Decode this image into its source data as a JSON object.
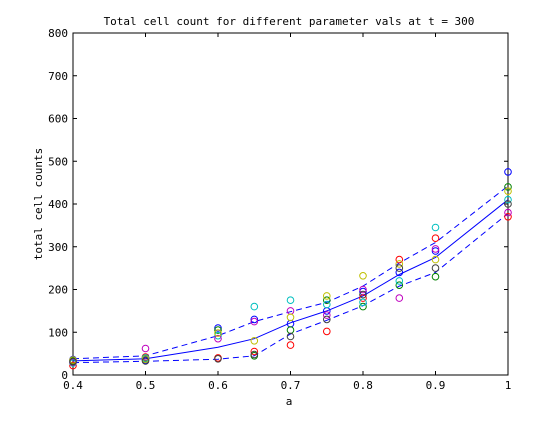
{
  "chart_data": {
    "type": "scatter",
    "title": "Total cell count for different parameter vals at t = 300",
    "xlabel": "a",
    "ylabel": "total cell counts",
    "xlim": [
      0.4,
      1.0
    ],
    "ylim": [
      0,
      800
    ],
    "xticks": [
      "0.4",
      "0.5",
      "0.6",
      "0.7",
      "0.8",
      "0.9",
      "1"
    ],
    "yticks": [
      "0",
      "100",
      "200",
      "300",
      "400",
      "500",
      "600",
      "700",
      "800"
    ],
    "grid": false,
    "colors": [
      "#0000ff",
      "#008000",
      "#ff0000",
      "#00bfbf",
      "#bf00bf",
      "#bfbf00",
      "#404040"
    ],
    "mean_line": {
      "x": [
        0.4,
        0.5,
        0.6,
        0.65,
        0.7,
        0.75,
        0.8,
        0.85,
        0.9,
        1.0
      ],
      "y": [
        33,
        38,
        65,
        85,
        122,
        150,
        185,
        235,
        275,
        410
      ],
      "color": "#0000ff",
      "style": "solid"
    },
    "upper_line": {
      "x": [
        0.4,
        0.5,
        0.6,
        0.65,
        0.7,
        0.75,
        0.8,
        0.85,
        0.9,
        1.0
      ],
      "y": [
        38,
        45,
        92,
        125,
        148,
        170,
        208,
        262,
        310,
        442
      ],
      "color": "#0000ff",
      "style": "dashed"
    },
    "lower_line": {
      "x": [
        0.4,
        0.5,
        0.6,
        0.65,
        0.7,
        0.75,
        0.8,
        0.85,
        0.9,
        1.0
      ],
      "y": [
        29,
        32,
        37,
        45,
        96,
        128,
        162,
        208,
        240,
        378
      ],
      "color": "#0000ff",
      "style": "dashed"
    },
    "points": [
      {
        "x": 0.4,
        "values": [
          36,
          33,
          22,
          28,
          30,
          35,
          31
        ]
      },
      {
        "x": 0.5,
        "values": [
          35,
          38,
          42,
          40,
          62,
          37,
          33
        ]
      },
      {
        "x": 0.6,
        "values": [
          110,
          105,
          40,
          92,
          85,
          98,
          38
        ]
      },
      {
        "x": 0.65,
        "values": [
          130,
          45,
          55,
          160,
          125,
          80,
          48
        ]
      },
      {
        "x": 0.7,
        "values": [
          120,
          105,
          70,
          175,
          150,
          135,
          90
        ]
      },
      {
        "x": 0.75,
        "values": [
          150,
          175,
          102,
          165,
          140,
          185,
          130
        ]
      },
      {
        "x": 0.8,
        "values": [
          195,
          160,
          180,
          170,
          200,
          232,
          188
        ]
      },
      {
        "x": 0.85,
        "values": [
          240,
          210,
          270,
          220,
          180,
          260,
          250
        ]
      },
      {
        "x": 0.9,
        "values": [
          290,
          230,
          320,
          345,
          295,
          270,
          250
        ]
      },
      {
        "x": 1.0,
        "values": [
          475,
          440,
          370,
          410,
          380,
          430,
          400
        ]
      }
    ]
  }
}
